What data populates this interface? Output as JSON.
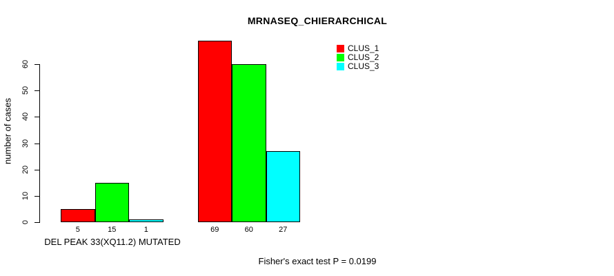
{
  "title": "MRNASEQ_CHIERARCHICAL",
  "chart_data": {
    "type": "bar",
    "title": "MRNASEQ_CHIERARCHICAL",
    "xlabel": "DEL PEAK 33(XQ11.2) MUTATED",
    "ylabel": "number of cases",
    "annotation": "Fisher's exact test P = 0.0199",
    "ylim": [
      0,
      69
    ],
    "y_ticks": [
      0,
      10,
      20,
      30,
      40,
      50,
      60
    ],
    "grid": false,
    "legend_position": "top-right",
    "series": [
      {
        "name": "CLUS_1",
        "color": "#ff0000",
        "values": [
          5,
          69
        ]
      },
      {
        "name": "CLUS_2",
        "color": "#00ff00",
        "values": [
          15,
          60
        ]
      },
      {
        "name": "CLUS_3",
        "color": "#00ffff",
        "values": [
          1,
          27
        ]
      }
    ],
    "x_tick_labels": [
      [
        "5",
        "15",
        "1"
      ],
      [
        "69",
        "60",
        "27"
      ]
    ],
    "legend_entries": [
      "CLUS_1",
      "CLUS_2",
      "CLUS_3"
    ],
    "axis_color": "#000000",
    "bar_border_color": "#000000"
  }
}
